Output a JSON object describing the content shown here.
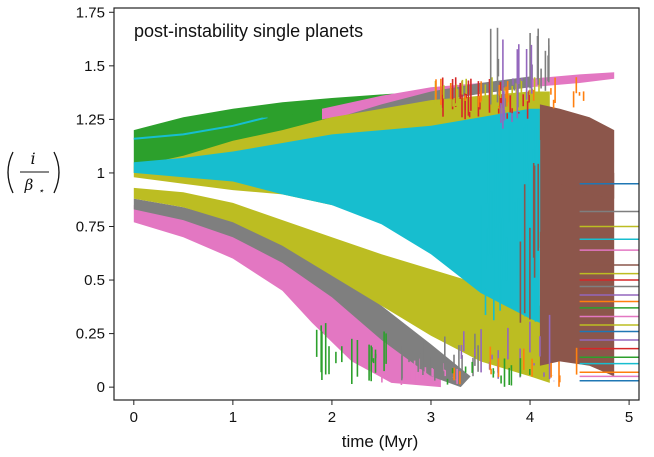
{
  "chart_data": {
    "type": "line",
    "title": "",
    "annotation": "post-instability single planets",
    "xlabel": "time (Myr)",
    "ylabel": {
      "numerator": "i",
      "denominator": "β",
      "subscript": "⋆"
    },
    "xlim": [
      -0.2,
      5.1
    ],
    "ylim": [
      -0.06,
      1.77
    ],
    "x_ticks": [
      {
        "value": 0,
        "label": "0"
      },
      {
        "value": 1,
        "label": "1"
      },
      {
        "value": 2,
        "label": "2"
      },
      {
        "value": 3,
        "label": "3"
      },
      {
        "value": 4,
        "label": "4"
      },
      {
        "value": 5,
        "label": "5"
      }
    ],
    "y_ticks": [
      {
        "value": 0,
        "label": "0"
      },
      {
        "value": 0.25,
        "label": "0.25"
      },
      {
        "value": 0.5,
        "label": "0.5"
      },
      {
        "value": 0.75,
        "label": "0.75"
      },
      {
        "value": 1,
        "label": "1"
      },
      {
        "value": 1.25,
        "label": "1.25"
      },
      {
        "value": 1.5,
        "label": "1.5"
      },
      {
        "value": 1.75,
        "label": "1.75"
      }
    ],
    "grid": false,
    "legend": "none",
    "bands": [
      {
        "color": "#2ca02c",
        "upper": [
          [
            0,
            1.2
          ],
          [
            0.5,
            1.26
          ],
          [
            1,
            1.3
          ],
          [
            1.5,
            1.33
          ],
          [
            2,
            1.35
          ],
          [
            2.6,
            1.37
          ],
          [
            3.2,
            1.37
          ]
        ],
        "lower": [
          [
            0,
            1.0
          ],
          [
            0.5,
            1.0
          ],
          [
            1,
            1.02
          ],
          [
            1.5,
            1.05
          ],
          [
            2,
            1.1
          ],
          [
            2.6,
            1.2
          ],
          [
            3.2,
            1.3
          ]
        ]
      },
      {
        "color": "#e377c2",
        "upper": [
          [
            0,
            0.85
          ],
          [
            0.5,
            0.8
          ],
          [
            1,
            0.72
          ],
          [
            1.5,
            0.6
          ],
          [
            2,
            0.45
          ],
          [
            2.5,
            0.3
          ],
          [
            3,
            0.1
          ],
          [
            3.1,
            0.05
          ]
        ],
        "lower": [
          [
            0,
            0.77
          ],
          [
            0.5,
            0.7
          ],
          [
            1,
            0.6
          ],
          [
            1.5,
            0.45
          ],
          [
            1.8,
            0.3
          ],
          [
            2.2,
            0.12
          ],
          [
            2.6,
            0.02
          ],
          [
            3.1,
            0.0
          ]
        ]
      },
      {
        "color": "#e377c2",
        "upper": [
          [
            1.9,
            1.3
          ],
          [
            2.5,
            1.36
          ],
          [
            3,
            1.4
          ],
          [
            4,
            1.44
          ],
          [
            4.5,
            1.46
          ],
          [
            4.85,
            1.47
          ]
        ],
        "lower": [
          [
            1.9,
            1.25
          ],
          [
            2.5,
            1.3
          ],
          [
            3,
            1.34
          ],
          [
            4,
            1.4
          ],
          [
            4.5,
            1.42
          ],
          [
            4.85,
            1.44
          ]
        ]
      },
      {
        "color": "#7f7f7f",
        "upper": [
          [
            0,
            0.88
          ],
          [
            0.5,
            0.84
          ],
          [
            1,
            0.78
          ],
          [
            1.5,
            0.7
          ],
          [
            2,
            0.55
          ],
          [
            2.5,
            0.38
          ],
          [
            3,
            0.2
          ],
          [
            3.4,
            0.05
          ]
        ],
        "lower": [
          [
            0,
            0.83
          ],
          [
            0.5,
            0.78
          ],
          [
            1,
            0.7
          ],
          [
            1.5,
            0.58
          ],
          [
            2,
            0.42
          ],
          [
            2.5,
            0.22
          ],
          [
            3,
            0.05
          ],
          [
            3.3,
            0.0
          ]
        ]
      },
      {
        "color": "#7f7f7f",
        "upper": [
          [
            2,
            1.25
          ],
          [
            2.5,
            1.32
          ],
          [
            3,
            1.38
          ],
          [
            3.5,
            1.42
          ],
          [
            4,
            1.45
          ]
        ],
        "lower": [
          [
            2,
            1.2
          ],
          [
            2.5,
            1.26
          ],
          [
            3,
            1.33
          ],
          [
            3.5,
            1.37
          ],
          [
            4,
            1.4
          ]
        ]
      },
      {
        "color": "#bcbd22",
        "upper": [
          [
            0,
            1.03
          ],
          [
            0.5,
            1.08
          ],
          [
            1,
            1.15
          ],
          [
            1.5,
            1.2
          ],
          [
            2,
            1.26
          ],
          [
            2.5,
            1.3
          ],
          [
            3,
            1.34
          ],
          [
            3.5,
            1.36
          ],
          [
            4,
            1.38
          ],
          [
            4.2,
            1.38
          ]
        ],
        "lower": [
          [
            0,
            0.98
          ],
          [
            0.5,
            0.95
          ],
          [
            1,
            0.92
          ],
          [
            1.5,
            0.9
          ],
          [
            2,
            0.85
          ],
          [
            2.5,
            0.8
          ],
          [
            3,
            0.74
          ],
          [
            3.5,
            0.7
          ],
          [
            4,
            0.66
          ],
          [
            4.2,
            0.64
          ]
        ]
      },
      {
        "color": "#bcbd22",
        "upper": [
          [
            0,
            0.93
          ],
          [
            0.5,
            0.91
          ],
          [
            1,
            0.86
          ],
          [
            1.5,
            0.78
          ],
          [
            2,
            0.7
          ],
          [
            2.5,
            0.62
          ],
          [
            3,
            0.55
          ],
          [
            3.5,
            0.48
          ],
          [
            4,
            0.4
          ],
          [
            4.2,
            0.36
          ]
        ],
        "lower": [
          [
            0,
            0.88
          ],
          [
            0.5,
            0.84
          ],
          [
            1,
            0.77
          ],
          [
            1.5,
            0.66
          ],
          [
            2,
            0.52
          ],
          [
            2.5,
            0.38
          ],
          [
            3,
            0.24
          ],
          [
            3.5,
            0.12
          ],
          [
            4,
            0.05
          ],
          [
            4.2,
            0.02
          ]
        ]
      },
      {
        "color": "#17becf",
        "upper": [
          [
            0,
            1.05
          ],
          [
            0.5,
            1.07
          ],
          [
            1,
            1.1
          ],
          [
            1.5,
            1.14
          ],
          [
            2,
            1.18
          ],
          [
            2.5,
            1.2
          ],
          [
            3,
            1.22
          ],
          [
            3.5,
            1.26
          ],
          [
            4,
            1.3
          ],
          [
            4.1,
            1.3
          ]
        ],
        "lower": [
          [
            0,
            1.0
          ],
          [
            0.5,
            0.98
          ],
          [
            1,
            0.96
          ],
          [
            1.5,
            0.9
          ],
          [
            2,
            0.85
          ],
          [
            2.5,
            0.76
          ],
          [
            3,
            0.62
          ],
          [
            3.5,
            0.44
          ],
          [
            4,
            0.32
          ],
          [
            4.1,
            0.3
          ]
        ]
      },
      {
        "color": "#8c564b",
        "upper": [
          [
            4.1,
            1.1
          ],
          [
            4.3,
            1.06
          ],
          [
            4.6,
            1.02
          ],
          [
            4.85,
            1.0
          ]
        ],
        "lower": [
          [
            4.1,
            0.1
          ],
          [
            4.3,
            0.12
          ],
          [
            4.6,
            0.1
          ],
          [
            4.85,
            0.05
          ]
        ]
      },
      {
        "color": "#8c564b",
        "upper": [
          [
            4.1,
            1.32
          ],
          [
            4.3,
            1.3
          ],
          [
            4.6,
            1.26
          ],
          [
            4.85,
            1.2
          ]
        ],
        "lower": [
          [
            4.1,
            1.05
          ],
          [
            4.3,
            0.95
          ],
          [
            4.6,
            0.9
          ],
          [
            4.85,
            0.88
          ]
        ]
      }
    ],
    "lines": [
      {
        "color": "#17becf",
        "width": 2,
        "points": [
          [
            0,
            1.16
          ],
          [
            0.5,
            1.18
          ],
          [
            1,
            1.22
          ],
          [
            1.35,
            1.26
          ]
        ]
      },
      {
        "color": "#2ca02c",
        "width": 1.2,
        "points": [
          [
            1.3,
            1.26
          ],
          [
            1.6,
            1.27
          ],
          [
            1.9,
            1.28
          ]
        ]
      }
    ],
    "tail_lines": [
      {
        "color": "#1f77b4",
        "y": 0.95
      },
      {
        "color": "#7f7f7f",
        "y": 0.82
      },
      {
        "color": "#bcbd22",
        "y": 0.75
      },
      {
        "color": "#17becf",
        "y": 0.69
      },
      {
        "color": "#e377c2",
        "y": 0.64
      },
      {
        "color": "#8c564b",
        "y": 0.57
      },
      {
        "color": "#bcbd22",
        "y": 0.53
      },
      {
        "color": "#d62728",
        "y": 0.5
      },
      {
        "color": "#7f7f7f",
        "y": 0.47
      },
      {
        "color": "#9467bd",
        "y": 0.43
      },
      {
        "color": "#ff7f0e",
        "y": 0.4
      },
      {
        "color": "#2ca02c",
        "y": 0.37
      },
      {
        "color": "#e377c2",
        "y": 0.33
      },
      {
        "color": "#bcbd22",
        "y": 0.29
      },
      {
        "color": "#1f77b4",
        "y": 0.26
      },
      {
        "color": "#9467bd",
        "y": 0.22
      },
      {
        "color": "#d62728",
        "y": 0.18
      },
      {
        "color": "#2ca02c",
        "y": 0.14
      },
      {
        "color": "#17becf",
        "y": 0.11
      },
      {
        "color": "#ff7f0e",
        "y": 0.07
      },
      {
        "color": "#e377c2",
        "y": 0.05
      },
      {
        "color": "#1f77b4",
        "y": 0.03
      }
    ],
    "spikes": [
      {
        "color": "#2ca02c",
        "x_range": [
          1.7,
          2.55
        ],
        "y_range": [
          0.0,
          0.32
        ],
        "count": 18
      },
      {
        "color": "#e377c2",
        "x_range": [
          2.5,
          3.3
        ],
        "y_range": [
          0.0,
          0.15
        ],
        "count": 14
      },
      {
        "color": "#7f7f7f",
        "x_range": [
          2.7,
          3.6
        ],
        "y_range": [
          0.0,
          0.25
        ],
        "count": 16
      },
      {
        "color": "#d62728",
        "x_range": [
          3.0,
          4.0
        ],
        "y_range": [
          1.25,
          1.45
        ],
        "count": 28
      },
      {
        "color": "#bcbd22",
        "x_range": [
          3.0,
          4.1
        ],
        "y_range": [
          1.3,
          1.46
        ],
        "count": 24
      },
      {
        "color": "#7f7f7f",
        "x_range": [
          3.6,
          4.2
        ],
        "y_range": [
          1.3,
          1.68
        ],
        "count": 16
      },
      {
        "color": "#9467bd",
        "x_range": [
          3.7,
          4.15
        ],
        "y_range": [
          1.2,
          1.7
        ],
        "count": 12
      },
      {
        "color": "#ff7f0e",
        "x_range": [
          3.0,
          4.6
        ],
        "y_range": [
          1.3,
          1.45
        ],
        "count": 20
      },
      {
        "color": "#9467bd",
        "x_range": [
          3.3,
          4.3
        ],
        "y_range": [
          0.0,
          0.35
        ],
        "count": 16
      },
      {
        "color": "#ff7f0e",
        "x_range": [
          3.2,
          4.5
        ],
        "y_range": [
          0.0,
          0.2
        ],
        "count": 14
      },
      {
        "color": "#2ca02c",
        "x_range": [
          3.0,
          4.0
        ],
        "y_range": [
          0.0,
          0.15
        ],
        "count": 12
      },
      {
        "color": "#17becf",
        "x_range": [
          3.5,
          4.1
        ],
        "y_range": [
          0.3,
          1.25
        ],
        "count": 40
      },
      {
        "color": "#8c564b",
        "x_range": [
          3.9,
          4.1
        ],
        "y_range": [
          0.3,
          1.1
        ],
        "count": 6
      }
    ]
  }
}
